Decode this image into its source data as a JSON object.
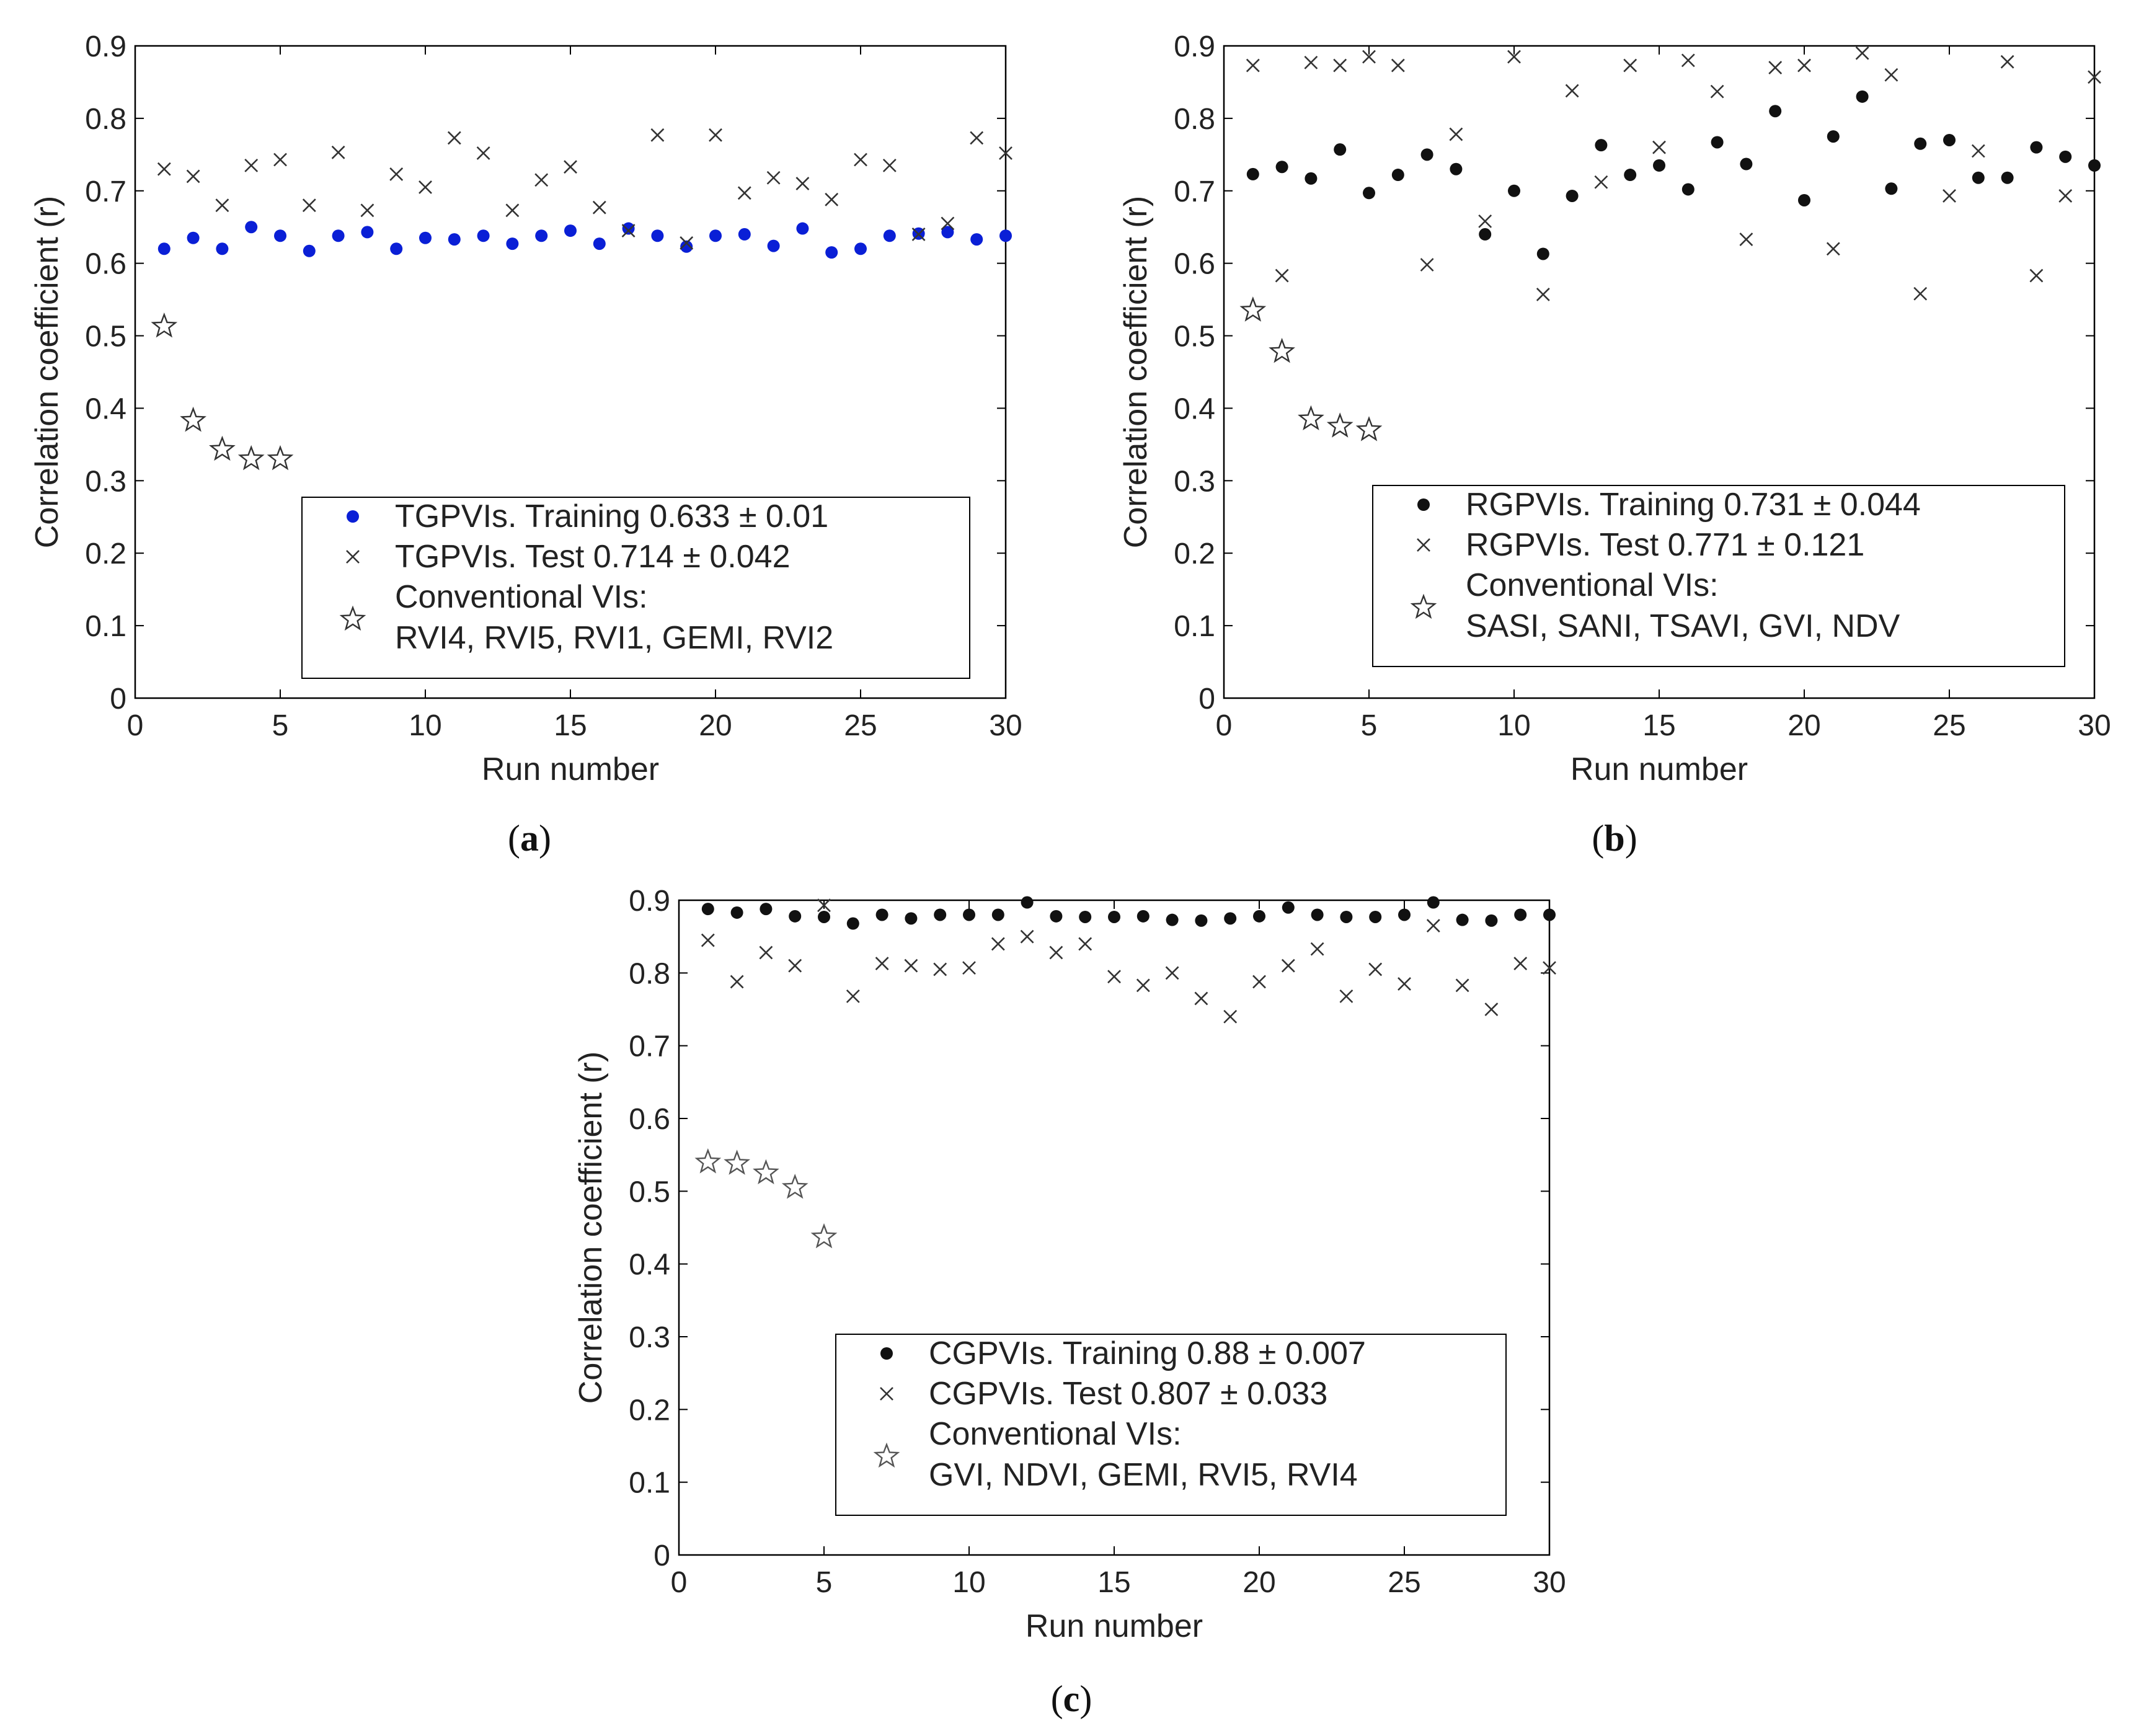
{
  "chart_data": [
    {
      "type": "scatter",
      "panel_label_prefix": "(",
      "panel_label": "a",
      "panel_label_suffix": ")",
      "xlabel": "Run number",
      "ylabel": "Correlation coefficient (r)",
      "xlim": [
        0,
        30
      ],
      "ylim": [
        0,
        0.9
      ],
      "xticks": [
        "0",
        "5",
        "10",
        "15",
        "20",
        "25",
        "30"
      ],
      "yticks": [
        "0",
        "0.1",
        "0.2",
        "0.3",
        "0.4",
        "0.5",
        "0.6",
        "0.7",
        "0.8",
        "0.9"
      ],
      "legend_position": "bottom-right",
      "series": [
        {
          "name": "TGPVIs. Training 0.633 ± 0.01",
          "marker": "dot",
          "color": "#0a1fd6",
          "x": [
            1,
            2,
            3,
            4,
            5,
            6,
            7,
            8,
            9,
            10,
            11,
            12,
            13,
            14,
            15,
            16,
            17,
            18,
            19,
            20,
            21,
            22,
            23,
            24,
            25,
            26,
            27,
            28,
            29,
            30
          ],
          "y": [
            0.62,
            0.635,
            0.62,
            0.65,
            0.638,
            0.617,
            0.638,
            0.643,
            0.62,
            0.635,
            0.633,
            0.638,
            0.627,
            0.638,
            0.645,
            0.627,
            0.648,
            0.638,
            0.623,
            0.638,
            0.64,
            0.624,
            0.648,
            0.615,
            0.62,
            0.638,
            0.641,
            0.643,
            0.633,
            0.638
          ]
        },
        {
          "name": "TGPVIs. Test 0.714 ± 0.042",
          "marker": "x",
          "color": "#333333",
          "x": [
            1,
            2,
            3,
            4,
            5,
            6,
            7,
            8,
            9,
            10,
            11,
            12,
            13,
            14,
            15,
            16,
            17,
            18,
            19,
            20,
            21,
            22,
            23,
            24,
            25,
            26,
            27,
            28,
            29,
            30
          ],
          "y": [
            0.73,
            0.72,
            0.68,
            0.735,
            0.743,
            0.68,
            0.753,
            0.673,
            0.723,
            0.705,
            0.773,
            0.752,
            0.673,
            0.715,
            0.733,
            0.677,
            0.645,
            0.777,
            0.628,
            0.777,
            0.697,
            0.718,
            0.71,
            0.688,
            0.743,
            0.735,
            0.64,
            0.655,
            0.773,
            0.752
          ]
        },
        {
          "name": "Conventional VIs:",
          "name_line2": "RVI4, RVI5, RVI1, GEMI, RVI2",
          "marker": "star",
          "color": "#333333",
          "x": [
            1,
            2,
            3,
            4,
            5
          ],
          "y": [
            0.513,
            0.383,
            0.343,
            0.33,
            0.33
          ]
        }
      ]
    },
    {
      "type": "scatter",
      "panel_label_prefix": "(",
      "panel_label": "b",
      "panel_label_suffix": ")",
      "xlabel": "Run number",
      "ylabel": "Correlation coefficient (r)",
      "xlim": [
        0,
        30
      ],
      "ylim": [
        0,
        0.9
      ],
      "xticks": [
        "0",
        "5",
        "10",
        "15",
        "20",
        "25",
        "30"
      ],
      "yticks": [
        "0",
        "0.1",
        "0.2",
        "0.3",
        "0.4",
        "0.5",
        "0.6",
        "0.7",
        "0.8",
        "0.9"
      ],
      "legend_position": "bottom-right",
      "series": [
        {
          "name": "RGPVIs. Training 0.731 ± 0.044",
          "marker": "dot",
          "color": "#111111",
          "x": [
            1,
            2,
            3,
            4,
            5,
            6,
            7,
            8,
            9,
            10,
            11,
            12,
            13,
            14,
            15,
            16,
            17,
            18,
            19,
            20,
            21,
            22,
            23,
            24,
            25,
            26,
            27,
            28,
            29,
            30
          ],
          "y": [
            0.723,
            0.733,
            0.717,
            0.757,
            0.697,
            0.722,
            0.75,
            0.73,
            0.64,
            0.7,
            0.613,
            0.693,
            0.763,
            0.722,
            0.735,
            0.702,
            0.767,
            0.737,
            0.81,
            0.687,
            0.775,
            0.83,
            0.703,
            0.765,
            0.77,
            0.718,
            0.718,
            0.76,
            0.747,
            0.735
          ]
        },
        {
          "name": "RGPVIs. Test 0.771 ± 0.121",
          "marker": "x",
          "color": "#333333",
          "x": [
            1,
            2,
            3,
            4,
            5,
            6,
            7,
            8,
            9,
            10,
            11,
            12,
            13,
            14,
            15,
            16,
            17,
            18,
            19,
            20,
            21,
            22,
            23,
            24,
            25,
            26,
            27,
            28,
            29,
            30
          ],
          "y": [
            0.873,
            0.583,
            0.877,
            0.873,
            0.885,
            0.873,
            0.598,
            0.778,
            0.658,
            0.885,
            0.557,
            0.838,
            0.712,
            0.873,
            0.76,
            0.88,
            0.837,
            0.633,
            0.87,
            0.873,
            0.62,
            0.89,
            0.86,
            0.558,
            0.693,
            0.755,
            0.878,
            0.583,
            0.693,
            0.857
          ]
        },
        {
          "name": "Conventional VIs:",
          "name_line2": "SASI, SANI, TSAVI, GVI, NDV",
          "marker": "star",
          "color": "#333333",
          "x": [
            1,
            2,
            3,
            4,
            5
          ],
          "y": [
            0.535,
            0.478,
            0.385,
            0.375,
            0.37
          ]
        }
      ]
    },
    {
      "type": "scatter",
      "panel_label_prefix": "(",
      "panel_label": "c",
      "panel_label_suffix": ")",
      "xlabel": "Run number",
      "ylabel": "Correlation coefficient (r)",
      "xlim": [
        0,
        30
      ],
      "ylim": [
        0,
        0.9
      ],
      "xticks": [
        "0",
        "5",
        "10",
        "15",
        "20",
        "25",
        "30"
      ],
      "yticks": [
        "0",
        "0.1",
        "0.2",
        "0.3",
        "0.4",
        "0.5",
        "0.6",
        "0.7",
        "0.8",
        "0.9"
      ],
      "legend_position": "bottom-right",
      "series": [
        {
          "name": "CGPVIs. Training 0.88 ± 0.007",
          "marker": "dot",
          "color": "#111111",
          "x": [
            1,
            2,
            3,
            4,
            5,
            6,
            7,
            8,
            9,
            10,
            11,
            12,
            13,
            14,
            15,
            16,
            17,
            18,
            19,
            20,
            21,
            22,
            23,
            24,
            25,
            26,
            27,
            28,
            29,
            30
          ],
          "y": [
            0.888,
            0.883,
            0.888,
            0.878,
            0.877,
            0.868,
            0.88,
            0.875,
            0.88,
            0.88,
            0.88,
            0.897,
            0.878,
            0.877,
            0.877,
            0.878,
            0.873,
            0.872,
            0.875,
            0.878,
            0.89,
            0.88,
            0.877,
            0.877,
            0.88,
            0.897,
            0.873,
            0.872,
            0.88,
            0.88
          ]
        },
        {
          "name": "CGPVIs. Test 0.807 ± 0.033",
          "marker": "x",
          "color": "#333333",
          "x": [
            1,
            2,
            3,
            4,
            5,
            6,
            7,
            8,
            9,
            10,
            11,
            12,
            13,
            14,
            15,
            16,
            17,
            18,
            19,
            20,
            21,
            22,
            23,
            24,
            25,
            26,
            27,
            28,
            29,
            30
          ],
          "y": [
            0.845,
            0.788,
            0.828,
            0.81,
            0.893,
            0.768,
            0.813,
            0.81,
            0.805,
            0.807,
            0.84,
            0.85,
            0.828,
            0.84,
            0.795,
            0.783,
            0.8,
            0.765,
            0.74,
            0.788,
            0.81,
            0.833,
            0.768,
            0.805,
            0.785,
            0.865,
            0.783,
            0.75,
            0.813,
            0.807
          ]
        },
        {
          "name": "Conventional VIs:",
          "name_line2": "GVI, NDVI, GEMI, RVI5, RVI4",
          "marker": "star",
          "color": "#555555",
          "x": [
            1,
            2,
            3,
            4,
            5
          ],
          "y": [
            0.54,
            0.538,
            0.525,
            0.505,
            0.437
          ]
        }
      ]
    }
  ]
}
